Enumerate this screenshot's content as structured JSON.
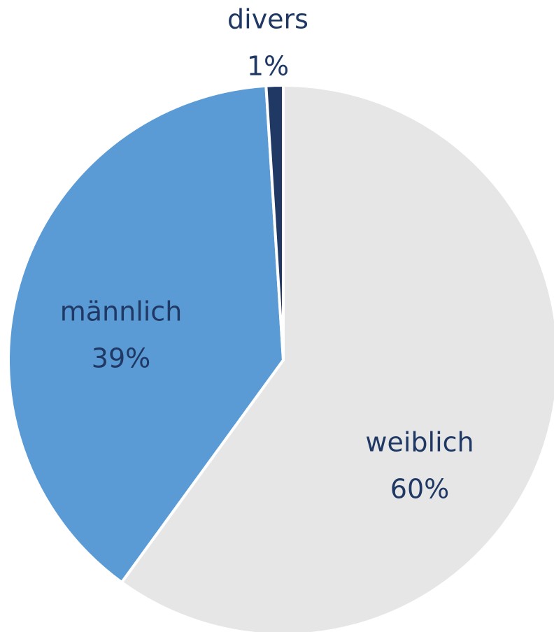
{
  "chart_data": {
    "type": "pie",
    "categories": [
      "weiblich",
      "männlich",
      "divers"
    ],
    "values": [
      60,
      39,
      1
    ],
    "value_labels": [
      "60%",
      "39%",
      "1%"
    ],
    "colors": [
      "#e6e6e6",
      "#5b9bd5",
      "#1f3864"
    ]
  }
}
